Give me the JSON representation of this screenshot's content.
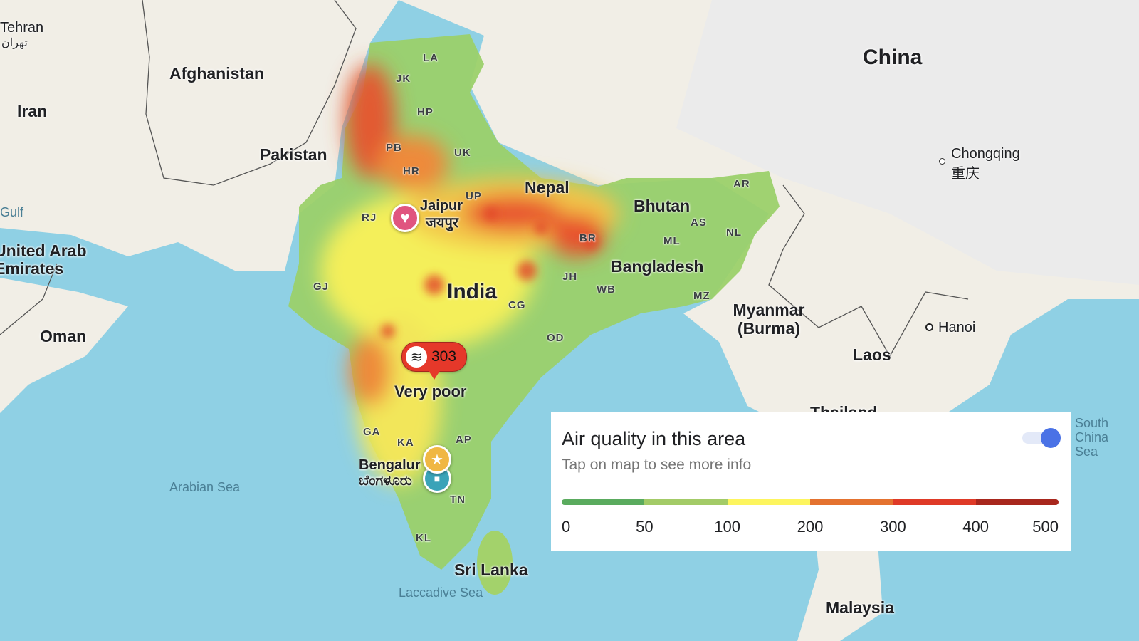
{
  "map": {
    "countries": [
      "China",
      "Afghanistan",
      "Iran",
      "Pakistan",
      "Nepal",
      "Bhutan",
      "Bangladesh",
      "India",
      "Myanmar (Burma)",
      "Laos",
      "Oman",
      "United Arab Emirates",
      "Sri Lanka",
      "Malaysia",
      "Thailand",
      "Tehran",
      "تهران",
      "Gulf",
      "South China Sea"
    ],
    "states": [
      "LA",
      "JK",
      "HP",
      "PB",
      "UK",
      "HR",
      "UP",
      "RJ",
      "BR",
      "AS",
      "AR",
      "NL",
      "ML",
      "JH",
      "WB",
      "MZ",
      "GJ",
      "CG",
      "OD",
      "GA",
      "KA",
      "AP",
      "TN",
      "KL"
    ],
    "cities": [
      "Chongqing",
      "重庆",
      "Hanoi",
      "Jaipur",
      "जयपुर",
      "Bengaluru",
      "ಬೆಂಗಳೂರು"
    ],
    "seas": [
      "Arabian Sea",
      "Laccadive Sea"
    ],
    "colors": {
      "sea": "#8fd0e4",
      "land": "#f1eee6"
    }
  },
  "markers": {
    "aqi": {
      "icon": "air-waves-icon",
      "value": "303",
      "label": "Very poor",
      "color": "#e5382a"
    },
    "favorite": {
      "icon": "heart-icon",
      "color": "#e0557f"
    },
    "starred": {
      "icon": "star-icon",
      "color": "#f0b743"
    },
    "saved": {
      "icon": "bookmark-icon",
      "color": "#3aa3b8"
    }
  },
  "panel": {
    "title": "Air quality in this area",
    "subtitle": "Tap on map to see more info",
    "toggle_on": true,
    "scale_colors": [
      "#5aab5e",
      "#a3cb67",
      "#fdf55e",
      "#e4722f",
      "#df3a27",
      "#a8271d"
    ],
    "scale_ticks": [
      "0",
      "50",
      "100",
      "200",
      "300",
      "400",
      "500"
    ]
  }
}
